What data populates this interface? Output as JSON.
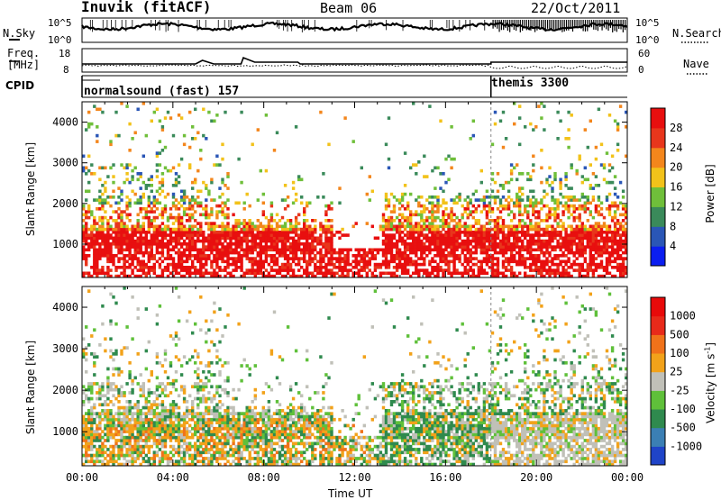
{
  "header": {
    "station": "Inuvik (fitACF)",
    "beam": "Beam 06",
    "date": "22/Oct/2011"
  },
  "top_panels": {
    "nsky_label": "N.Sky",
    "nsearch_label": "N.Search",
    "noise_ticks_left": [
      "10^5",
      "10^0"
    ],
    "noise_ticks_right": [
      "10^5",
      "10^0"
    ],
    "freq_label_1": "Freq.",
    "freq_label_2": "[MHz]",
    "freq_ticks": [
      "18",
      "8"
    ],
    "nave_label": "Nave",
    "nave_ticks": [
      "60",
      "0"
    ],
    "cpid_label": "CPID",
    "cpid_segments": [
      {
        "label": "normalsound (fast) 157",
        "start_hour": 0
      },
      {
        "label": "themis 3300",
        "start_hour": 18
      }
    ]
  },
  "chart_data": [
    {
      "type": "heatmap",
      "title": "",
      "xlabel": "",
      "ylabel": "Slant Range [km]",
      "x_range_hours": [
        0,
        24
      ],
      "ylim": [
        180,
        4500
      ],
      "x_ticks": [
        "00:00",
        "04:00",
        "08:00",
        "12:00",
        "16:00",
        "20:00",
        "00:00"
      ],
      "y_ticks": [
        1000,
        2000,
        3000,
        4000
      ],
      "colorbar": {
        "label": "Power [dB]",
        "ticks": [
          4,
          8,
          12,
          16,
          20,
          24,
          28
        ],
        "range": [
          0,
          32
        ],
        "colors": [
          "#0b1ef0",
          "#2a56b6",
          "#3a8a5a",
          "#6fbf3a",
          "#f2c21a",
          "#f3861c",
          "#e8361c",
          "#e80f0f"
        ]
      }
    },
    {
      "type": "heatmap",
      "title": "",
      "xlabel": "Time UT",
      "ylabel": "Slant Range [km]",
      "x_range_hours": [
        0,
        24
      ],
      "ylim": [
        180,
        4500
      ],
      "x_ticks": [
        "00:00",
        "04:00",
        "08:00",
        "12:00",
        "16:00",
        "20:00",
        "00:00"
      ],
      "y_ticks": [
        1000,
        2000,
        3000,
        4000
      ],
      "colorbar": {
        "label": "Velocity [m s^-1]",
        "ticks": [
          1000,
          500,
          100,
          25,
          -25,
          -100,
          -500,
          -1000
        ],
        "colors": [
          "#1f44c8",
          "#3b7fb4",
          "#2f8a4e",
          "#5fc03a",
          "#c0c0b8",
          "#f2a21a",
          "#f0721a",
          "#e82a1a",
          "#e80a0a"
        ]
      }
    }
  ]
}
